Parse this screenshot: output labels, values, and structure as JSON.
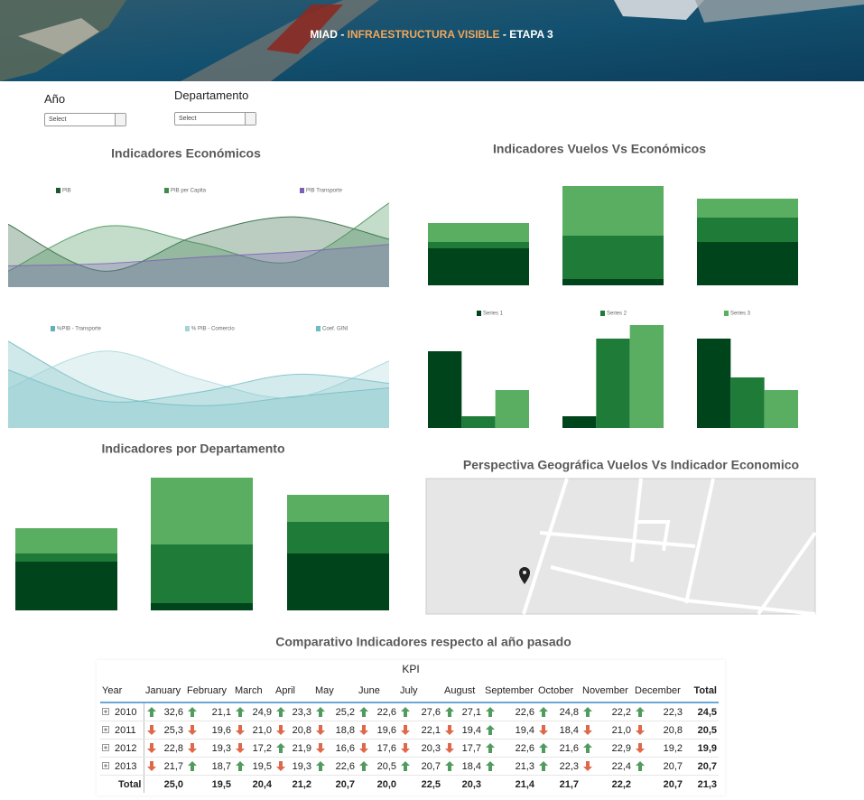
{
  "header": {
    "title_parts": [
      "MIAD",
      " - ",
      "INFRAESTRUCTURA VISIBLE",
      " - ",
      "ETAPA 3"
    ]
  },
  "filters": [
    {
      "label": "Año",
      "placeholder": "Select"
    },
    {
      "label": "Departamento",
      "placeholder": "Select"
    }
  ],
  "chart_data": [
    {
      "type": "area",
      "title": "Indicadores Económicos",
      "ylim": [
        0,
        100
      ],
      "series": [
        {
          "name": "PIB",
          "color": "#1b5a2f",
          "values": [
            59,
            15,
            49,
            66,
            45
          ]
        },
        {
          "name": "PIB per Capita",
          "color": "#3d8b4f",
          "values": [
            15,
            57,
            41,
            24,
            79
          ]
        },
        {
          "name": "PIB Transporte",
          "color": "#7b5fb5",
          "values": [
            20,
            22,
            28,
            33,
            40
          ]
        }
      ]
    },
    {
      "type": "area",
      "ylim": [
        0,
        100
      ],
      "series": [
        {
          "name": "%PIB - Transporte",
          "color": "#5fb3b8",
          "values": [
            97,
            40,
            25,
            35,
            45
          ]
        },
        {
          "name": "% PIB - Comercio",
          "color": "#a4d4d8",
          "values": [
            44,
            86,
            55,
            34,
            75
          ]
        },
        {
          "name": "Coef. GINI",
          "color": "#6fbdc4",
          "values": [
            65,
            30,
            40,
            60,
            50
          ]
        }
      ]
    },
    {
      "type": "stacked_bar",
      "title": "Indicadores Vuelos Vs Económicos",
      "ylim": [
        0,
        120
      ],
      "series": [
        {
          "color": "#00441b",
          "values": [
            41,
            7,
            48
          ]
        },
        {
          "color": "#1e7b38",
          "values": [
            7,
            48,
            27
          ]
        },
        {
          "color": "#5aae61",
          "values": [
            21,
            55,
            21
          ]
        }
      ]
    },
    {
      "type": "bar",
      "ylim": [
        0,
        120
      ],
      "series": [
        {
          "name": "Series 1",
          "color": "#00441b",
          "values": [
            85,
            13,
            99
          ]
        },
        {
          "name": "Series 2",
          "color": "#1e7b38",
          "values": [
            13,
            99,
            56
          ]
        },
        {
          "name": "Series 3",
          "color": "#5aae61",
          "values": [
            42,
            114,
            42
          ]
        }
      ]
    },
    {
      "type": "stacked_bar",
      "title": "Indicadores por Departamento",
      "ylim": [
        0,
        150
      ],
      "series": [
        {
          "color": "#00441b",
          "values": [
            54,
            8,
            63
          ]
        },
        {
          "color": "#1e7b38",
          "values": [
            9,
            65,
            35
          ]
        },
        {
          "color": "#5aae61",
          "values": [
            28,
            74,
            30
          ]
        }
      ]
    }
  ],
  "map": {
    "title": "Perspectiva Geográfica Vuelos Vs Indicador Economico"
  },
  "table": {
    "title": "Comparativo Indicadores respecto al año pasado",
    "header_group": "KPI",
    "columns": [
      "Year",
      "January",
      "February",
      "March",
      "April",
      "May",
      "June",
      "July",
      "August",
      "September",
      "October",
      "November",
      "December",
      "Total"
    ],
    "rows": [
      {
        "year": "2010",
        "cells": [
          {
            "trend": "up",
            "value": "32,6"
          },
          {
            "trend": "up",
            "value": "21,1"
          },
          {
            "trend": "up",
            "value": "24,9"
          },
          {
            "trend": "up",
            "value": "23,3"
          },
          {
            "trend": "up",
            "value": "25,2"
          },
          {
            "trend": "up",
            "value": "22,6"
          },
          {
            "trend": "up",
            "value": "27,6"
          },
          {
            "trend": "up",
            "value": "27,1"
          },
          {
            "trend": "up",
            "value": "22,6"
          },
          {
            "trend": "up",
            "value": "24,8"
          },
          {
            "trend": "up",
            "value": "22,2"
          },
          {
            "trend": "up",
            "value": "22,3"
          }
        ],
        "total": "24,5"
      },
      {
        "year": "2011",
        "cells": [
          {
            "trend": "down",
            "value": "25,3"
          },
          {
            "trend": "down",
            "value": "19,6"
          },
          {
            "trend": "down",
            "value": "21,0"
          },
          {
            "trend": "down",
            "value": "20,8"
          },
          {
            "trend": "down",
            "value": "18,8"
          },
          {
            "trend": "down",
            "value": "19,6"
          },
          {
            "trend": "down",
            "value": "22,1"
          },
          {
            "trend": "down",
            "value": "19,4"
          },
          {
            "trend": "up",
            "value": "19,4"
          },
          {
            "trend": "down",
            "value": "18,4"
          },
          {
            "trend": "down",
            "value": "21,0"
          },
          {
            "trend": "down",
            "value": "20,8"
          }
        ],
        "total": "20,5"
      },
      {
        "year": "2012",
        "cells": [
          {
            "trend": "down",
            "value": "22,8"
          },
          {
            "trend": "down",
            "value": "19,3"
          },
          {
            "trend": "down",
            "value": "17,2"
          },
          {
            "trend": "up",
            "value": "21,9"
          },
          {
            "trend": "down",
            "value": "16,6"
          },
          {
            "trend": "down",
            "value": "17,6"
          },
          {
            "trend": "down",
            "value": "20,3"
          },
          {
            "trend": "down",
            "value": "17,7"
          },
          {
            "trend": "up",
            "value": "22,6"
          },
          {
            "trend": "up",
            "value": "21,6"
          },
          {
            "trend": "up",
            "value": "22,9"
          },
          {
            "trend": "down",
            "value": "19,2"
          }
        ],
        "total": "19,9"
      },
      {
        "year": "2013",
        "cells": [
          {
            "trend": "down",
            "value": "21,7"
          },
          {
            "trend": "up",
            "value": "18,7"
          },
          {
            "trend": "up",
            "value": "19,5"
          },
          {
            "trend": "down",
            "value": "19,3"
          },
          {
            "trend": "up",
            "value": "22,6"
          },
          {
            "trend": "up",
            "value": "20,5"
          },
          {
            "trend": "up",
            "value": "20,7"
          },
          {
            "trend": "up",
            "value": "18,4"
          },
          {
            "trend": "up",
            "value": "21,3"
          },
          {
            "trend": "up",
            "value": "22,3"
          },
          {
            "trend": "down",
            "value": "22,4"
          },
          {
            "trend": "up",
            "value": "20,7"
          }
        ],
        "total": "20,7"
      }
    ],
    "total_row": {
      "label": "Total",
      "values": [
        "25,0",
        "19,5",
        "20,4",
        "21,2",
        "20,7",
        "20,0",
        "22,5",
        "20,3",
        "21,4",
        "21,7",
        "22,2",
        "20,7"
      ],
      "total": "21,3"
    }
  }
}
